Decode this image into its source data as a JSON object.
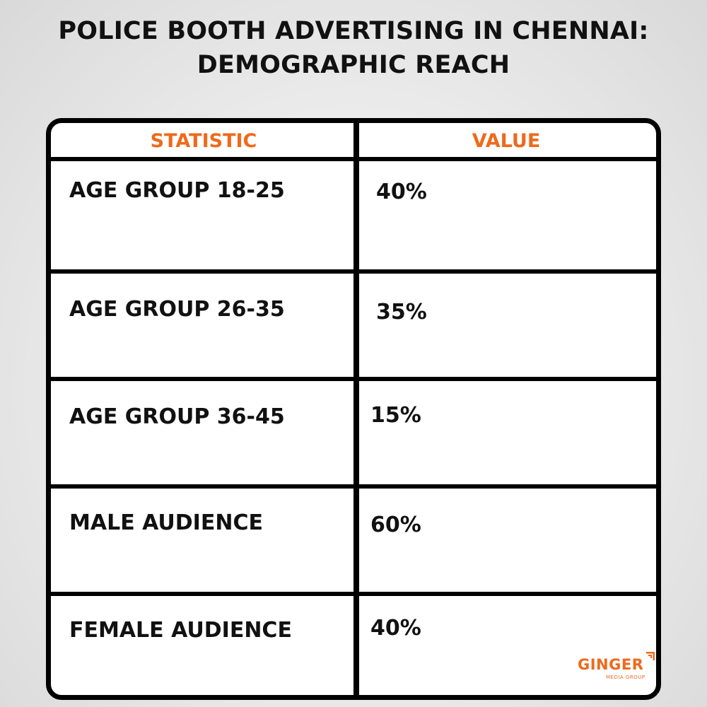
{
  "title": {
    "line1": "POLICE BOOTH ADVERTISING IN CHENNAI:",
    "line2": "DEMOGRAPHIC REACH"
  },
  "chart_data": {
    "type": "table",
    "columns": [
      "STATISTIC",
      "VALUE"
    ],
    "rows": [
      {
        "statistic": "AGE GROUP 18-25",
        "value": "40%"
      },
      {
        "statistic": "AGE GROUP 26-35",
        "value": "35%"
      },
      {
        "statistic": "AGE GROUP 36-45",
        "value": "15%"
      },
      {
        "statistic": "MALE AUDIENCE",
        "value": "60%"
      },
      {
        "statistic": "FEMALE AUDIENCE",
        "value": "40%"
      }
    ]
  },
  "logo": {
    "name": "GINGER",
    "tagline": "MEDIA GROUP",
    "icon": "ginger-logo-mark-icon"
  },
  "colors": {
    "accent": "#ee6a1c",
    "text": "#111111",
    "border": "#000000"
  }
}
